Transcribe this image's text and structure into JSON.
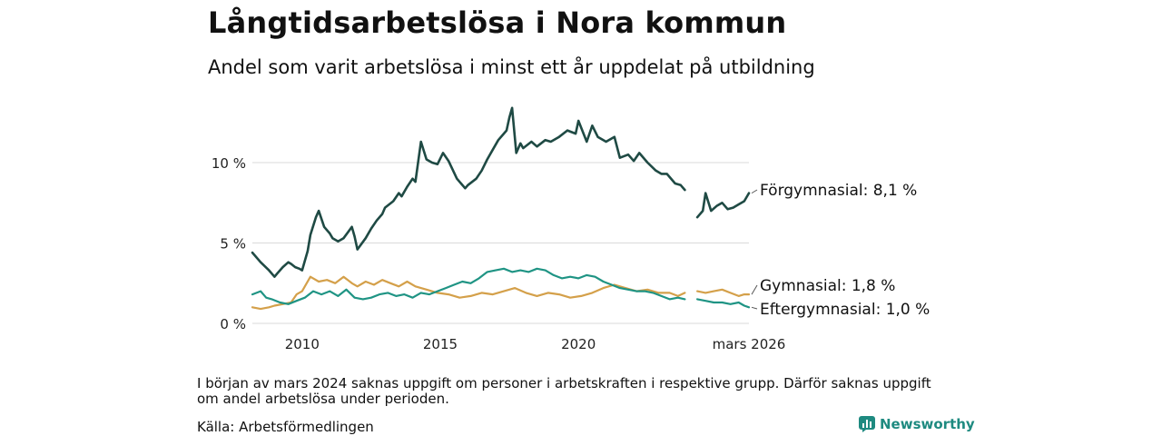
{
  "title": "Långtidsarbetslösa i Nora kommun",
  "subtitle": "Andel som varit arbetslösa i minst ett år uppdelat på utbildning",
  "note": "I början av mars 2024 saknas uppgift om personer i arbetskraften i respektive grupp. Därför saknas uppgift om andel arbetslösa under perioden.",
  "source": "Källa: Arbetsförmedlingen",
  "brand": "Newsworthy",
  "chart_data": {
    "type": "line",
    "title": "Långtidsarbetslösa i Nora kommun",
    "xlabel": "",
    "ylabel": "",
    "x_range": [
      2008.2,
      2026.17
    ],
    "ylim": [
      0,
      14
    ],
    "y_ticks": [
      0,
      5,
      10
    ],
    "y_tick_labels": [
      "0 %",
      "5 %",
      "10 %"
    ],
    "x_ticks": [
      2010,
      2015,
      2020,
      2026.17
    ],
    "x_tick_labels": [
      "2010",
      "2015",
      "2020",
      "mars 2026"
    ],
    "grid": "horizontal",
    "gap": [
      2023.9,
      2024.3
    ],
    "series": [
      {
        "name": "Förgymnasial",
        "end_label": "Förgymnasial: 8,1 %",
        "color": "#1f4a44",
        "x": [
          2008.2,
          2008.5,
          2008.8,
          2009.0,
          2009.1,
          2009.3,
          2009.5,
          2009.6,
          2009.75,
          2009.9,
          2010.0,
          2010.2,
          2010.3,
          2010.5,
          2010.6,
          2010.8,
          2011.0,
          2011.1,
          2011.3,
          2011.5,
          2011.8,
          2011.9,
          2012.0,
          2012.3,
          2012.5,
          2012.7,
          2012.9,
          2013.0,
          2013.3,
          2013.5,
          2013.6,
          2013.8,
          2014.0,
          2014.1,
          2014.3,
          2014.5,
          2014.7,
          2014.9,
          2015.1,
          2015.3,
          2015.6,
          2015.9,
          2016.0,
          2016.3,
          2016.5,
          2016.7,
          2016.9,
          2017.1,
          2017.3,
          2017.4,
          2017.5,
          2017.6,
          2017.75,
          2017.9,
          2018.0,
          2018.3,
          2018.5,
          2018.8,
          2019.0,
          2019.3,
          2019.6,
          2019.9,
          2020.0,
          2020.3,
          2020.5,
          2020.7,
          2021.0,
          2021.3,
          2021.5,
          2021.8,
          2022.0,
          2022.2,
          2022.5,
          2022.8,
          2023.0,
          2023.2,
          2023.5,
          2023.7,
          2023.85,
          2024.3,
          2024.5,
          2024.6,
          2024.8,
          2025.0,
          2025.2,
          2025.4,
          2025.6,
          2025.8,
          2026.0,
          2026.17
        ],
        "values": [
          4.4,
          3.8,
          3.3,
          2.9,
          3.1,
          3.5,
          3.8,
          3.7,
          3.5,
          3.4,
          3.3,
          4.5,
          5.5,
          6.6,
          7.0,
          6.0,
          5.6,
          5.3,
          5.1,
          5.3,
          6.0,
          5.4,
          4.6,
          5.3,
          5.9,
          6.4,
          6.8,
          7.2,
          7.6,
          8.1,
          7.9,
          8.5,
          9.0,
          8.8,
          11.3,
          10.2,
          10.0,
          9.9,
          10.6,
          10.1,
          9.0,
          8.4,
          8.6,
          9.0,
          9.5,
          10.2,
          10.8,
          11.4,
          11.8,
          12.0,
          12.8,
          13.4,
          10.6,
          11.2,
          10.9,
          11.3,
          11.0,
          11.4,
          11.3,
          11.6,
          12.0,
          11.8,
          12.6,
          11.3,
          12.3,
          11.6,
          11.3,
          11.6,
          10.3,
          10.5,
          10.1,
          10.6,
          10.0,
          9.5,
          9.3,
          9.3,
          8.7,
          8.6,
          8.3,
          6.6,
          7.0,
          8.1,
          7.0,
          7.3,
          7.5,
          7.1,
          7.2,
          7.4,
          7.6,
          8.1
        ]
      },
      {
        "name": "Gymnasial",
        "end_label": "Gymnasial: 1,8 %",
        "color": "#d4a04a",
        "x": [
          2008.2,
          2008.5,
          2008.8,
          2009.0,
          2009.3,
          2009.6,
          2009.8,
          2010.0,
          2010.3,
          2010.6,
          2010.9,
          2011.2,
          2011.5,
          2011.8,
          2012.0,
          2012.3,
          2012.6,
          2012.9,
          2013.2,
          2013.5,
          2013.8,
          2014.1,
          2014.5,
          2014.9,
          2015.3,
          2015.7,
          2016.1,
          2016.5,
          2016.9,
          2017.3,
          2017.7,
          2018.1,
          2018.5,
          2018.9,
          2019.3,
          2019.7,
          2020.1,
          2020.5,
          2020.9,
          2021.3,
          2021.7,
          2022.1,
          2022.5,
          2022.9,
          2023.3,
          2023.6,
          2023.85,
          2024.3,
          2024.6,
          2024.9,
          2025.2,
          2025.5,
          2025.8,
          2026.0,
          2026.17
        ],
        "values": [
          1.0,
          0.9,
          1.0,
          1.1,
          1.2,
          1.3,
          1.8,
          2.0,
          2.9,
          2.6,
          2.7,
          2.5,
          2.9,
          2.5,
          2.3,
          2.6,
          2.4,
          2.7,
          2.5,
          2.3,
          2.6,
          2.3,
          2.1,
          1.9,
          1.8,
          1.6,
          1.7,
          1.9,
          1.8,
          2.0,
          2.2,
          1.9,
          1.7,
          1.9,
          1.8,
          1.6,
          1.7,
          1.9,
          2.2,
          2.4,
          2.2,
          2.0,
          2.1,
          1.9,
          1.9,
          1.7,
          1.9,
          2.0,
          1.9,
          2.0,
          2.1,
          1.9,
          1.7,
          1.8,
          1.8
        ]
      },
      {
        "name": "Eftergymnasial",
        "end_label": "Eftergymnasial: 1,0 %",
        "color": "#1f9484",
        "x": [
          2008.2,
          2008.5,
          2008.7,
          2008.9,
          2009.2,
          2009.5,
          2009.8,
          2010.1,
          2010.4,
          2010.7,
          2011.0,
          2011.3,
          2011.6,
          2011.9,
          2012.2,
          2012.5,
          2012.8,
          2013.1,
          2013.4,
          2013.7,
          2014.0,
          2014.3,
          2014.6,
          2014.9,
          2015.2,
          2015.5,
          2015.8,
          2016.1,
          2016.4,
          2016.7,
          2017.0,
          2017.3,
          2017.6,
          2017.9,
          2018.2,
          2018.5,
          2018.8,
          2019.1,
          2019.4,
          2019.7,
          2020.0,
          2020.3,
          2020.6,
          2020.9,
          2021.2,
          2021.5,
          2021.8,
          2022.1,
          2022.4,
          2022.7,
          2023.0,
          2023.3,
          2023.6,
          2023.85,
          2024.3,
          2024.6,
          2024.9,
          2025.2,
          2025.5,
          2025.8,
          2026.0,
          2026.17
        ],
        "values": [
          1.8,
          2.0,
          1.6,
          1.5,
          1.3,
          1.2,
          1.4,
          1.6,
          2.0,
          1.8,
          2.0,
          1.7,
          2.1,
          1.6,
          1.5,
          1.6,
          1.8,
          1.9,
          1.7,
          1.8,
          1.6,
          1.9,
          1.8,
          2.0,
          2.2,
          2.4,
          2.6,
          2.5,
          2.8,
          3.2,
          3.3,
          3.4,
          3.2,
          3.3,
          3.2,
          3.4,
          3.3,
          3.0,
          2.8,
          2.9,
          2.8,
          3.0,
          2.9,
          2.6,
          2.4,
          2.2,
          2.1,
          2.0,
          2.0,
          1.9,
          1.7,
          1.5,
          1.6,
          1.5,
          1.5,
          1.4,
          1.3,
          1.3,
          1.2,
          1.3,
          1.1,
          1.0
        ]
      }
    ]
  }
}
